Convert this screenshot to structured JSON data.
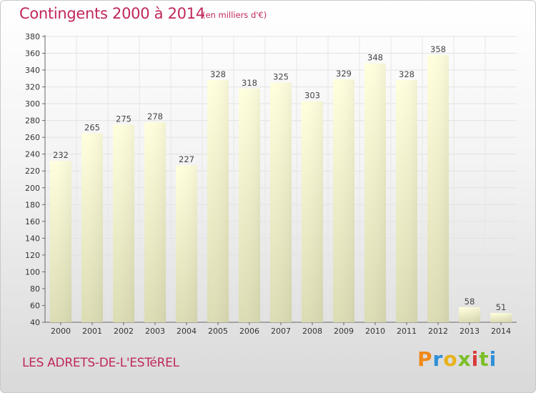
{
  "header": {
    "title": "Contingents 2000 à 2014",
    "subtitle": "(en milliers d'€)"
  },
  "footer": {
    "place": "LES ADRETS-DE-L'ESTéREL",
    "logo_text": "Proxiti"
  },
  "colors": {
    "title": "#c0285a",
    "bar_top": "#ffffde",
    "bar_bottom": "#dcdcb4",
    "logo": [
      "#f08a1c",
      "#2f8fd8",
      "#e8b21a",
      "#7bbf2a",
      "#d83a3a"
    ]
  },
  "chart_data": {
    "type": "bar",
    "title": "Contingents 2000 à 2014",
    "subtitle": "(en milliers d'€)",
    "categories": [
      "2000",
      "2001",
      "2002",
      "2003",
      "2004",
      "2005",
      "2006",
      "2007",
      "2008",
      "2009",
      "2010",
      "2011",
      "2012",
      "2013",
      "2014"
    ],
    "values": [
      232,
      265,
      275,
      278,
      227,
      328,
      318,
      325,
      303,
      329,
      348,
      328,
      358,
      58,
      51
    ],
    "ylim": [
      40,
      380
    ],
    "yticks": [
      40,
      60,
      80,
      100,
      120,
      140,
      160,
      180,
      200,
      220,
      240,
      260,
      280,
      300,
      320,
      340,
      360,
      380
    ],
    "grid": true,
    "xlabel": "",
    "ylabel": ""
  }
}
